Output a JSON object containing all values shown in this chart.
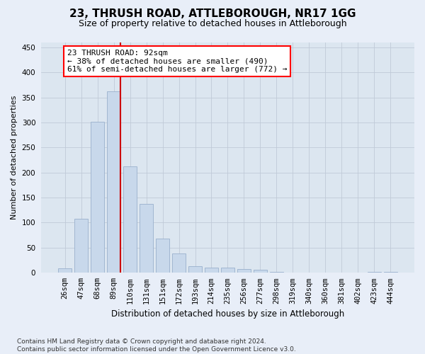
{
  "title_line1": "23, THRUSH ROAD, ATTLEBOROUGH, NR17 1GG",
  "title_line2": "Size of property relative to detached houses in Attleborough",
  "xlabel": "Distribution of detached houses by size in Attleborough",
  "ylabel": "Number of detached properties",
  "footnote": "Contains HM Land Registry data © Crown copyright and database right 2024.\nContains public sector information licensed under the Open Government Licence v3.0.",
  "categories": [
    "26sqm",
    "47sqm",
    "68sqm",
    "89sqm",
    "110sqm",
    "131sqm",
    "151sqm",
    "172sqm",
    "193sqm",
    "214sqm",
    "235sqm",
    "256sqm",
    "277sqm",
    "298sqm",
    "319sqm",
    "340sqm",
    "360sqm",
    "381sqm",
    "402sqm",
    "423sqm",
    "444sqm"
  ],
  "values": [
    8,
    108,
    302,
    362,
    212,
    137,
    68,
    38,
    13,
    10,
    10,
    7,
    5,
    1,
    0,
    0,
    0,
    0,
    0,
    2,
    2
  ],
  "bar_color": "#c8d8eb",
  "bar_edge_color": "#9ab0cc",
  "grid_color": "#c0cad8",
  "annotation_line_color": "#cc0000",
  "annotation_box_text": "23 THRUSH ROAD: 92sqm\n← 38% of detached houses are smaller (490)\n61% of semi-detached houses are larger (772) →",
  "ylim": [
    0,
    460
  ],
  "yticks": [
    0,
    50,
    100,
    150,
    200,
    250,
    300,
    350,
    400,
    450
  ],
  "fig_bg_color": "#e8eef8",
  "plot_bg_color": "#dce6f0",
  "title1_fontsize": 11,
  "title2_fontsize": 9,
  "ylabel_fontsize": 8,
  "xlabel_fontsize": 8.5,
  "tick_fontsize": 7.5,
  "footnote_fontsize": 6.5,
  "annotation_fontsize": 8
}
